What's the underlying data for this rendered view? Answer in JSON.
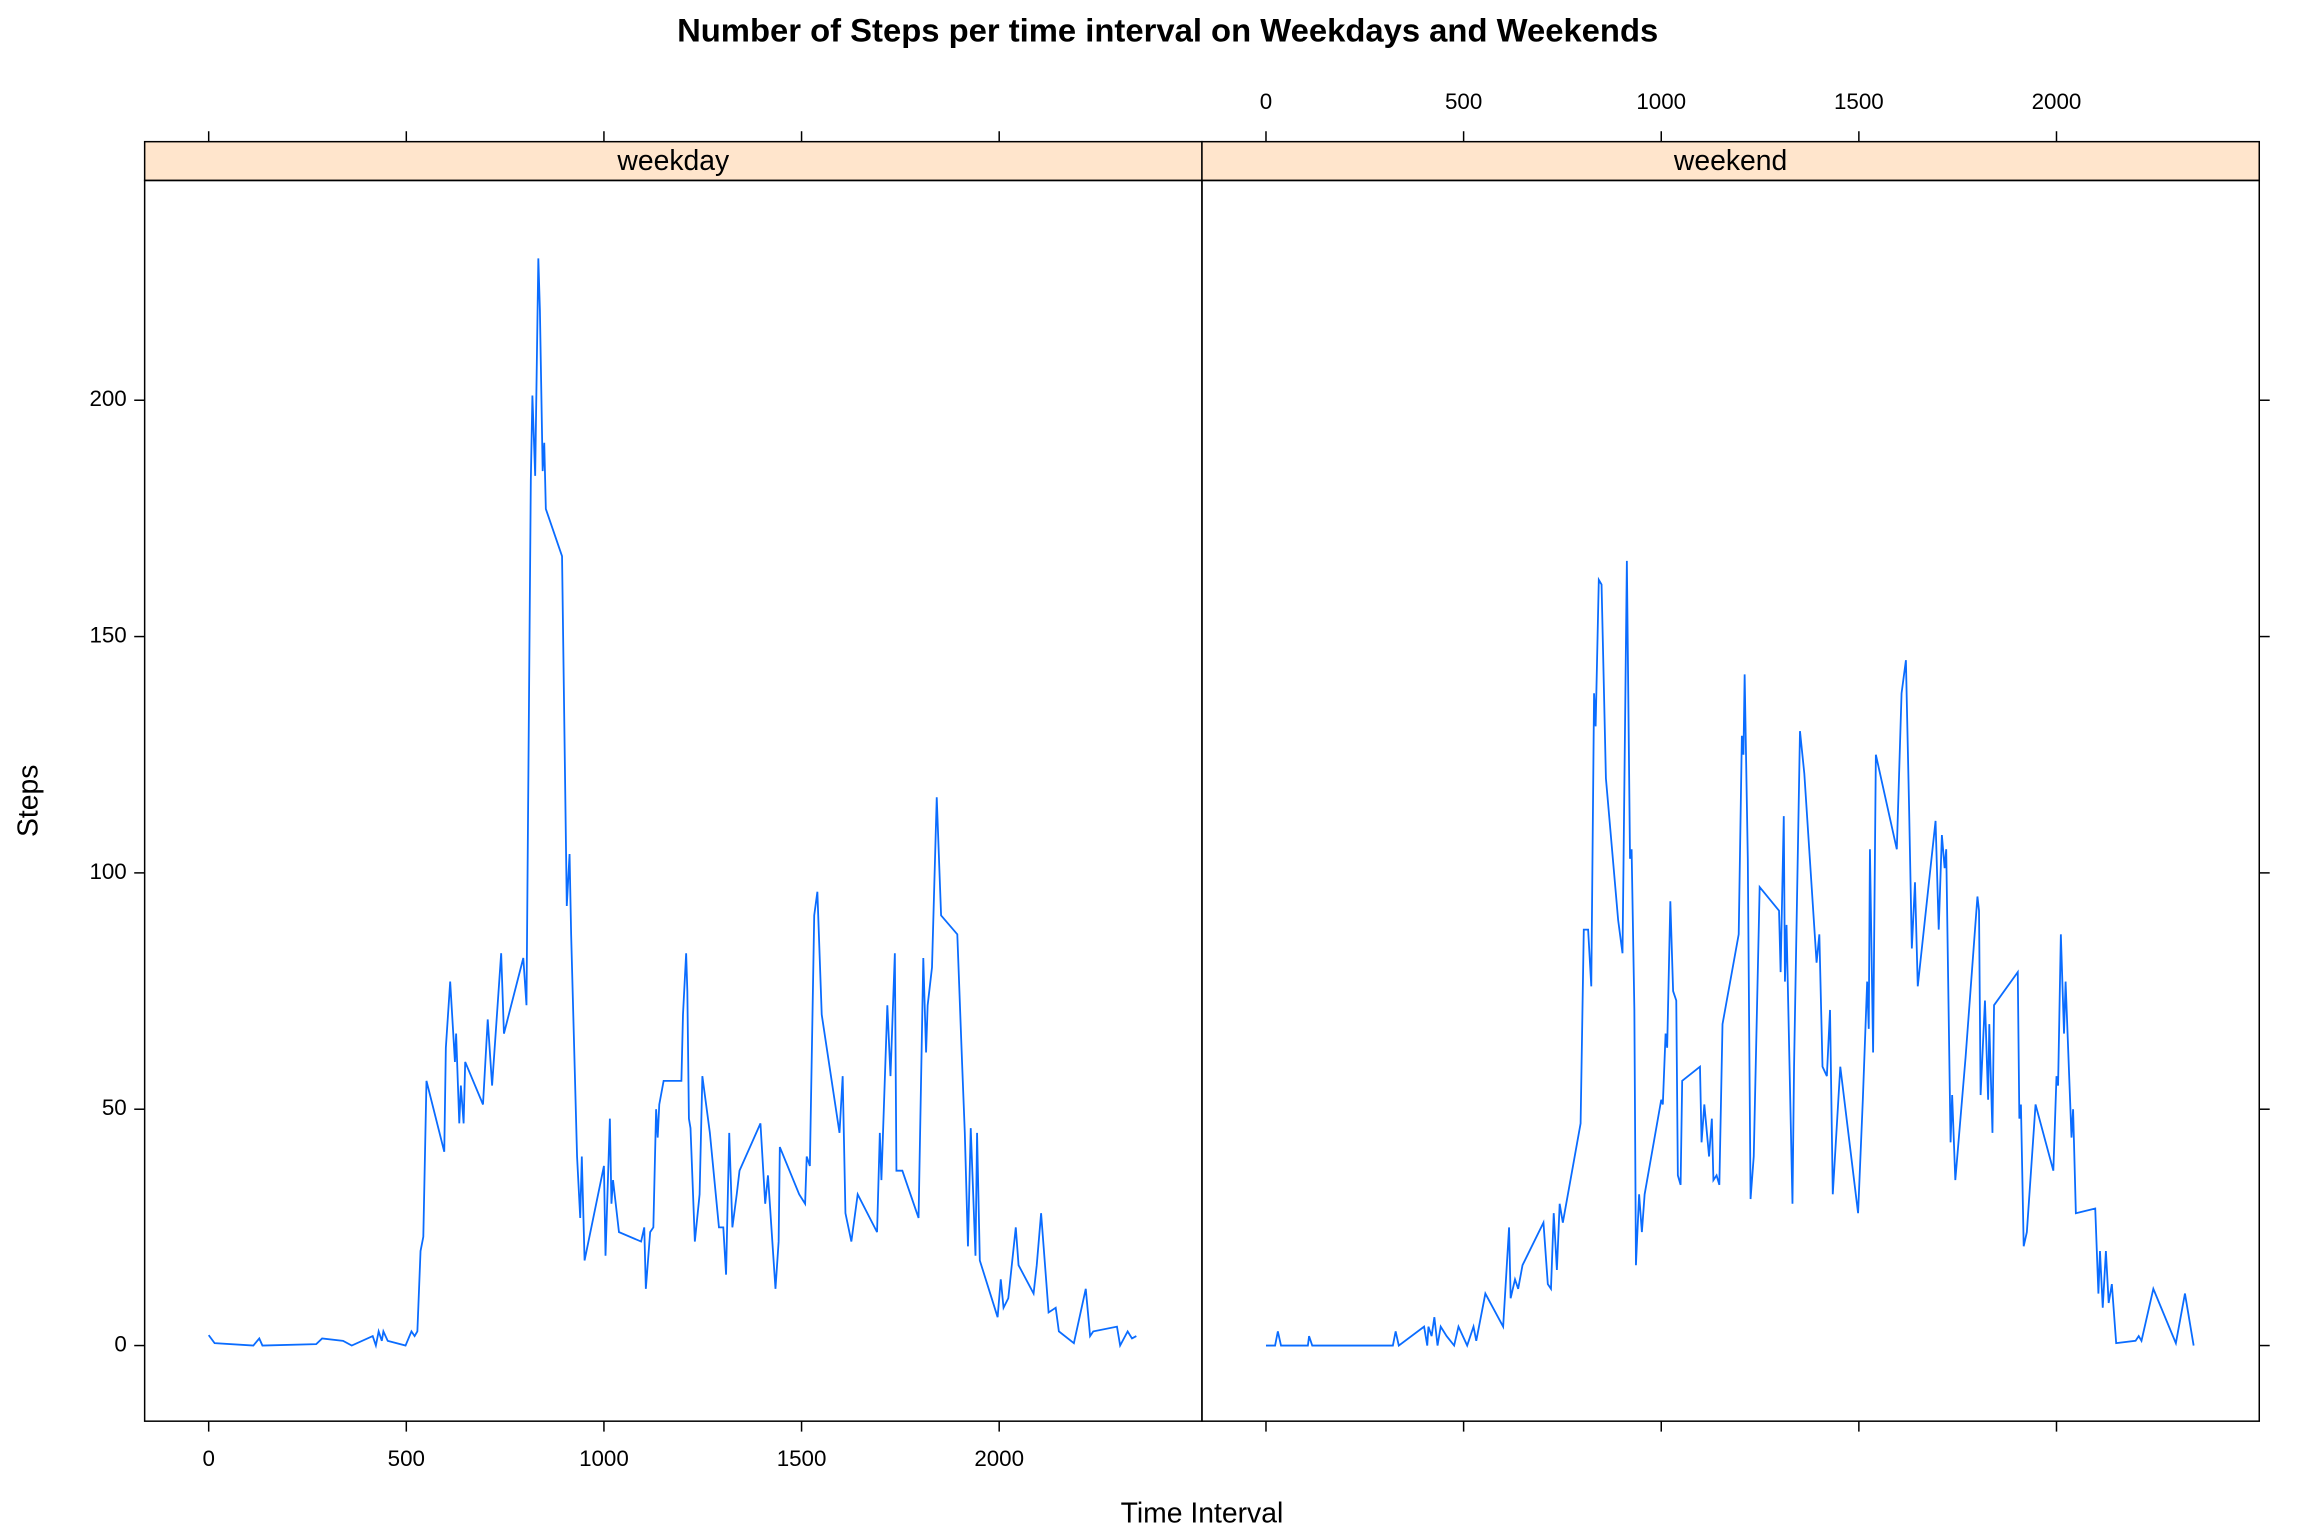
{
  "chart_data": {
    "type": "line",
    "title": "Number of Steps per time interval on Weekdays and Weekends",
    "xlabel": "Time Interval",
    "ylabel": "Steps",
    "xlim": [
      -162,
      2513
    ],
    "ylim": [
      -16,
      246.5
    ],
    "xticks": [
      0,
      500,
      1000,
      1500,
      2000
    ],
    "yticks": [
      0,
      50,
      100,
      150,
      200
    ],
    "strip_color": "#ffe5cc",
    "series": [
      {
        "name": "weekday",
        "color": "#0a6cff",
        "x": [
          0,
          15,
          113,
          128,
          136,
          272,
          287,
          340,
          362,
          415,
          423,
          430,
          438,
          442,
          453,
          498,
          513,
          521,
          528,
          536,
          543,
          551,
          596,
          600,
          611,
          623,
          626,
          634,
          638,
          645,
          649,
          694,
          706,
          717,
          740,
          747,
          796,
          804,
          815,
          819,
          826,
          834,
          838,
          845,
          849,
          853,
          894,
          906,
          913,
          917,
          932,
          940,
          944,
          951,
          1000,
          1004,
          1015,
          1019,
          1023,
          1038,
          1094,
          1102,
          1106,
          1117,
          1125,
          1132,
          1136,
          1140,
          1151,
          1196,
          1200,
          1208,
          1211,
          1215,
          1219,
          1230,
          1242,
          1249,
          1268,
          1291,
          1302,
          1309,
          1317,
          1325,
          1336,
          1343,
          1396,
          1408,
          1415,
          1434,
          1442,
          1445,
          1494,
          1509,
          1513,
          1521,
          1532,
          1540,
          1551,
          1596,
          1604,
          1611,
          1626,
          1642,
          1691,
          1698,
          1702,
          1717,
          1725,
          1736,
          1740,
          1755,
          1796,
          1808,
          1815,
          1819,
          1830,
          1842,
          1849,
          1853,
          1894,
          1906,
          1913,
          1921,
          1928,
          1940,
          1944,
          1951,
          1996,
          2004,
          2011,
          2023,
          2042,
          2049,
          2087,
          2095,
          2106,
          2125,
          2143,
          2151,
          2189,
          2219,
          2230,
          2238,
          2298,
          2306,
          2325,
          2336,
          2347
        ],
        "values": [
          2.2,
          0.5,
          0,
          1.5,
          0,
          0.3,
          1.5,
          1,
          0,
          2,
          0,
          3,
          1,
          3,
          1,
          0,
          3,
          2,
          3,
          20,
          23,
          56,
          41,
          63,
          77,
          60,
          66,
          47,
          55,
          47,
          60,
          51,
          69,
          55,
          83,
          66,
          82,
          72,
          183,
          201,
          184,
          230,
          219,
          185,
          191,
          177,
          167,
          93,
          104,
          87,
          40,
          27,
          40,
          18,
          38,
          19,
          48,
          30,
          35,
          24,
          22,
          25,
          12,
          24,
          25,
          50,
          44,
          51,
          56,
          56,
          70,
          83,
          75,
          48,
          46,
          22,
          32,
          57,
          45,
          25,
          25,
          15,
          45,
          25,
          32,
          37,
          47,
          30,
          36,
          12,
          22,
          42,
          32,
          30,
          40,
          38,
          91,
          96,
          70,
          45,
          57,
          28,
          22,
          32,
          24,
          45,
          35,
          72,
          57,
          83,
          37,
          37,
          27,
          82,
          62,
          72,
          80,
          116,
          100,
          91,
          87,
          60,
          45,
          21,
          46,
          19,
          45,
          18,
          6,
          14,
          8,
          10,
          25,
          17,
          11,
          17,
          28,
          7,
          8,
          3,
          0.5,
          12,
          2,
          3,
          4,
          0,
          3,
          1.5,
          2
        ]
      },
      {
        "name": "weekend",
        "color": "#0a6cff",
        "x": [
          0,
          23,
          30,
          38,
          106,
          109,
          117,
          321,
          328,
          336,
          400,
          408,
          411,
          419,
          426,
          434,
          442,
          457,
          476,
          487,
          509,
          525,
          532,
          555,
          600,
          615,
          619,
          630,
          638,
          649,
          702,
          713,
          721,
          728,
          736,
          743,
          751,
          796,
          804,
          815,
          823,
          830,
          834,
          842,
          849,
          860,
          891,
          902,
          913,
          921,
          925,
          932,
          936,
          944,
          951,
          958,
          1000,
          1004,
          1011,
          1015,
          1023,
          1030,
          1038,
          1042,
          1049,
          1053,
          1098,
          1102,
          1109,
          1121,
          1128,
          1132,
          1140,
          1147,
          1155,
          1196,
          1204,
          1208,
          1211,
          1219,
          1226,
          1234,
          1249,
          1298,
          1302,
          1310,
          1313,
          1317,
          1332,
          1336,
          1351,
          1362,
          1393,
          1400,
          1408,
          1419,
          1427,
          1434,
          1453,
          1498,
          1510,
          1521,
          1525,
          1528,
          1536,
          1543,
          1596,
          1608,
          1619,
          1627,
          1634,
          1642,
          1649,
          1694,
          1702,
          1710,
          1717,
          1721,
          1732,
          1736,
          1744,
          1770,
          1800,
          1804,
          1808,
          1819,
          1827,
          1830,
          1838,
          1842,
          1902,
          1906,
          1910,
          1917,
          1925,
          1947,
          1992,
          2000,
          2004,
          2011,
          2019,
          2023,
          2038,
          2042,
          2049,
          2098,
          2106,
          2110,
          2117,
          2125,
          2132,
          2140,
          2151,
          2200,
          2208,
          2215,
          2245,
          2302,
          2325,
          2347
        ],
        "values": [
          0,
          0,
          3,
          0,
          0,
          2,
          0,
          0,
          3,
          0,
          4,
          0,
          4,
          2,
          6,
          0,
          4,
          2,
          0,
          4,
          0,
          4,
          1,
          11,
          4,
          25,
          10,
          14,
          12,
          17,
          26,
          13,
          12,
          28,
          16,
          30,
          26,
          47,
          88,
          88,
          76,
          138,
          131,
          162,
          161,
          120,
          90,
          83,
          166,
          103,
          105,
          71,
          17,
          32,
          24,
          32,
          52,
          51,
          66,
          63,
          94,
          75,
          73,
          36,
          34,
          56,
          59,
          43,
          51,
          40,
          48,
          35,
          36,
          34,
          68,
          87,
          129,
          125,
          142,
          103,
          31,
          40,
          97,
          92,
          79,
          112,
          77,
          89,
          30,
          59,
          130,
          121,
          81,
          87,
          59,
          57,
          71,
          32,
          59,
          28,
          52,
          77,
          67,
          105,
          62,
          125,
          105,
          138,
          145,
          114,
          84,
          98,
          76,
          111,
          88,
          108,
          101,
          105,
          43,
          53,
          35,
          61,
          95,
          92,
          53,
          73,
          52,
          68,
          45,
          72,
          79,
          48,
          51,
          21,
          24,
          51,
          37,
          57,
          55,
          87,
          66,
          77,
          44,
          50,
          28,
          29,
          11,
          20,
          8,
          20,
          9,
          13,
          0.5,
          1,
          2,
          1,
          12,
          0.5,
          11,
          0
        ]
      }
    ]
  }
}
